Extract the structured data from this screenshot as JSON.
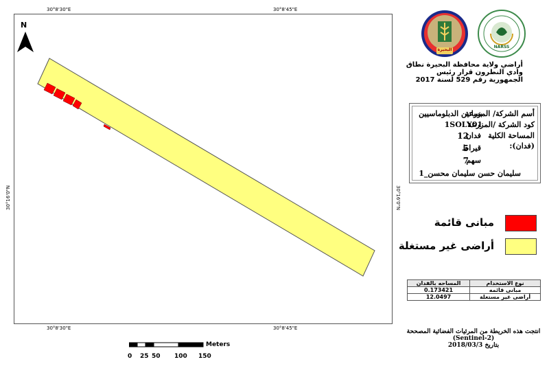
{
  "map": {
    "coords": {
      "top_left": "30°8'30\"E",
      "top_right": "30°8'45\"E",
      "bottom_left": "30°8'30\"E",
      "bottom_right": "30°8'45\"E",
      "left_lat": "30°16'0\"N",
      "right_lat": "30°16'0\"N"
    },
    "north_label": "N",
    "colors": {
      "parcel": "#ffff80",
      "buildings": "#ff0000"
    }
  },
  "title": {
    "line1": "أراضي ولاية محافظة البحيرة نطاق",
    "line2": "وادي النطرون قرار رئيس",
    "line3": "الجمهورية رقم 529 لسنة 2017"
  },
  "logos": {
    "right_logo_text": "NARSS",
    "left_logo_text": "البحيرة"
  },
  "info": {
    "label_name": "أسم الشركة/ المزرعة",
    "value_name": "بساتين الدبلوماسيين",
    "label_code": "كود الشركة /المزرعة",
    "value_code": "1SOLY01",
    "label_area": "المساحة الكلية",
    "label_area_unit": "(فدان):",
    "value_feddan": "12",
    "unit_feddan": "فدان",
    "value_qirat": "5",
    "unit_qirat": "قيراط",
    "value_sahm": "7",
    "unit_sahm": "سهم",
    "owner": "سليمان حسن سليمان محسن_1"
  },
  "legend": {
    "items": [
      {
        "label": "مبانى قائمة",
        "color": "#ff0000"
      },
      {
        "label": "أراضى غير مستغلة",
        "color": "#ffff80"
      }
    ]
  },
  "area_table": {
    "header_use": "نوع الاستخدام",
    "header_area": "المساحه بالفدان",
    "rows": [
      {
        "use": "مبانى قائمه",
        "area": "0.173421"
      },
      {
        "use": "أراضى غير مستغلة",
        "area": "12.0497"
      }
    ]
  },
  "source": {
    "line1": "انتجت هذه الخريطة من المرئيات الفضائية المصححة",
    "line2": "(Sentinel-2)",
    "line3": "بتاريخ 2018/03/3"
  },
  "scale": {
    "ticks": [
      "0",
      "25",
      "50",
      "100",
      "150"
    ],
    "unit": "Meters"
  }
}
